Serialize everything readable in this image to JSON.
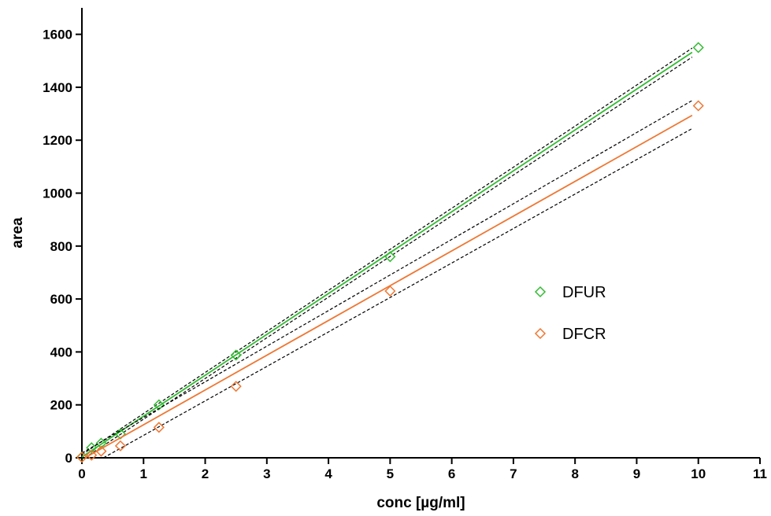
{
  "chart_data": {
    "type": "scatter",
    "title": "",
    "xlabel": "conc [µg/ml]",
    "ylabel": "area",
    "xlim": [
      0,
      11
    ],
    "ylim": [
      0,
      1700
    ],
    "xticks": [
      "0",
      "1",
      "2",
      "3",
      "4",
      "5",
      "6",
      "7",
      "8",
      "9",
      "10",
      "11"
    ],
    "yticks": [
      "0",
      "200",
      "400",
      "600",
      "800",
      "1000",
      "1200",
      "1400",
      "1600"
    ],
    "legend_position": "right-middle",
    "grid": false,
    "series": [
      {
        "name": "DFUR",
        "color": "#33bb33",
        "marker": "diamond",
        "x": [
          0,
          0.156,
          0.3125,
          0.625,
          1.25,
          2.5,
          5,
          10
        ],
        "y": [
          3,
          38,
          55,
          90,
          200,
          388,
          760,
          1550
        ],
        "fit": {
          "x": [
            0,
            9.9
          ],
          "y": [
            3,
            1532
          ]
        },
        "ci_upper": {
          "x": [
            0,
            9.9
          ],
          "y": [
            12,
            1548
          ]
        },
        "ci_lower": {
          "x": [
            0.05,
            9.9
          ],
          "y": [
            0,
            1514
          ]
        }
      },
      {
        "name": "DFCR",
        "color": "#ee7733",
        "marker": "diamond",
        "x": [
          0,
          0.156,
          0.3125,
          0.625,
          1.25,
          2.5,
          5,
          10
        ],
        "y": [
          2,
          10,
          25,
          45,
          115,
          270,
          630,
          1330
        ],
        "fit": {
          "x": [
            0.05,
            9.9
          ],
          "y": [
            0,
            1294
          ]
        },
        "ci_upper": {
          "x": [
            0,
            9.9
          ],
          "y": [
            18,
            1350
          ]
        },
        "ci_lower": {
          "x": [
            0.35,
            9.9
          ],
          "y": [
            0,
            1244
          ]
        }
      }
    ]
  }
}
